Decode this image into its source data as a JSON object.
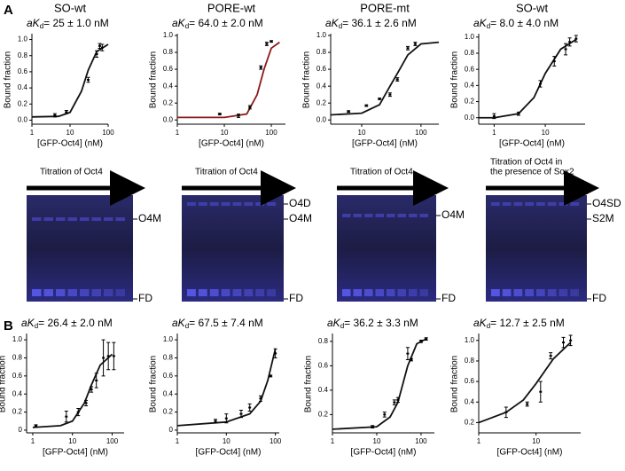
{
  "panel_labels": [
    "A",
    "B"
  ],
  "gels": [
    {
      "title": [
        "Titration of Oct4"
      ],
      "bands": [
        "O4M",
        "FD"
      ]
    },
    {
      "title": [
        "Titration of Oct4"
      ],
      "bands": [
        "O4D",
        "O4M",
        "FD"
      ]
    },
    {
      "title": [
        "Titration of Oct4"
      ],
      "bands": [
        "O4M",
        "FD"
      ]
    },
    {
      "title": [
        "Titration of Oct4 in",
        "the presence of Sox2"
      ],
      "bands": [
        "O4SD",
        "S2M",
        "FD"
      ]
    }
  ],
  "chart_data": [
    {
      "type": "scatter",
      "title": "SO-wt",
      "annotation": {
        "main": "aK",
        "sub": "d",
        "value": "= 25 ± 1.0 nM"
      },
      "xlabel": "[GFP-Oct4] (nM)",
      "ylabel": "Bound fraction",
      "xscale": "log",
      "xlim": [
        1,
        100
      ],
      "xticks": [
        1,
        10,
        100
      ],
      "ylim": [
        -0.05,
        1.05
      ],
      "yticks": [
        {
          "value": 0,
          "label": "0.0"
        },
        0.2,
        0.4,
        0.6,
        0.8,
        {
          "value": 1,
          "label": "1.0"
        }
      ],
      "color": "#111111",
      "points": {
        "x": [
          4,
          8,
          30,
          50,
          60,
          70
        ],
        "values": [
          0.06,
          0.1,
          0.5,
          0.82,
          0.92,
          0.9
        ],
        "errors": [
          0.02,
          0.02,
          0.03,
          0.04,
          0.03,
          0.04
        ]
      },
      "fit": {
        "x": [
          1,
          5,
          10,
          20,
          30,
          50,
          100
        ],
        "values": [
          0.04,
          0.047,
          0.096,
          0.36,
          0.62,
          0.85,
          0.94
        ]
      }
    },
    {
      "type": "scatter",
      "title": "PORE-wt",
      "annotation": {
        "main": "aK",
        "sub": "d",
        "value": "= 64.0 ± 2.0 nM"
      },
      "xlabel": "[GFP-Oct4] (nM)",
      "ylabel": "Bound fraction",
      "xscale": "log",
      "xlim": [
        1,
        200
      ],
      "xticks": [
        1,
        10,
        100
      ],
      "ylim": [
        -0.05,
        1.0
      ],
      "yticks": [
        {
          "value": 0,
          "label": "0.0"
        },
        0.2,
        0.4,
        0.6,
        0.8,
        {
          "value": 1,
          "label": "1.0"
        }
      ],
      "color": "#8b1a1a",
      "points": {
        "x": [
          8,
          20,
          35,
          60,
          80,
          100
        ],
        "values": [
          0.07,
          0.05,
          0.15,
          0.62,
          0.9,
          0.93
        ],
        "errors": [
          0.01,
          0.02,
          0.02,
          0.02,
          0.02,
          0.01
        ]
      },
      "fit": {
        "x": [
          1,
          10,
          30,
          50,
          70,
          100,
          150
        ],
        "values": [
          0.03,
          0.03,
          0.07,
          0.3,
          0.6,
          0.85,
          0.92
        ]
      }
    },
    {
      "type": "scatter",
      "title": "PORE-mt",
      "annotation": {
        "main": "aK",
        "sub": "d",
        "value": "= 36.1 ± 2.6 nM"
      },
      "xlabel": "[GFP-Oct4] (nM)",
      "ylabel": "Bound fraction",
      "xscale": "log",
      "xlim": [
        3,
        200
      ],
      "xticks": [
        10,
        100
      ],
      "ylim": [
        -0.05,
        1.0
      ],
      "yticks": [
        {
          "value": 0,
          "label": "0.0"
        },
        0.2,
        0.4,
        0.6,
        0.8,
        {
          "value": 1,
          "label": "1.0"
        }
      ],
      "color": "#111111",
      "points": {
        "x": [
          6,
          12,
          20,
          30,
          40,
          60,
          80
        ],
        "values": [
          0.1,
          0.17,
          0.25,
          0.3,
          0.48,
          0.85,
          0.9
        ],
        "errors": [
          0.01,
          0.01,
          0.01,
          0.02,
          0.02,
          0.02,
          0.02
        ]
      },
      "fit": {
        "x": [
          3,
          10,
          20,
          30,
          40,
          60,
          100,
          200
        ],
        "values": [
          0.06,
          0.08,
          0.18,
          0.4,
          0.55,
          0.77,
          0.9,
          0.92
        ]
      }
    },
    {
      "type": "scatter",
      "title": "SO-wt",
      "annotation": {
        "main": "aK",
        "sub": "d",
        "value": "= 8.0 ± 4.0 nM"
      },
      "xlabel": "[GFP-Oct4] (nM)",
      "ylabel": "Bound fraction",
      "xscale": "log",
      "xlim": [
        0.5,
        60
      ],
      "xticks": [
        1,
        10
      ],
      "ylim": [
        -0.08,
        1.02
      ],
      "yticks": [
        {
          "value": 0,
          "label": "0.0"
        },
        0.2,
        0.4,
        0.6,
        0.8,
        {
          "value": 1,
          "label": "1.0"
        }
      ],
      "color": "#111111",
      "points": {
        "x": [
          1,
          3,
          8,
          15,
          25,
          30,
          40
        ],
        "values": [
          0.02,
          0.05,
          0.42,
          0.7,
          0.85,
          0.94,
          0.98
        ],
        "errors": [
          0.03,
          0.02,
          0.04,
          0.06,
          0.07,
          0.05,
          0.04
        ]
      },
      "fit": {
        "x": [
          0.5,
          1,
          3,
          6,
          10,
          20,
          40
        ],
        "values": [
          0,
          0,
          0.05,
          0.25,
          0.55,
          0.85,
          0.97
        ]
      }
    },
    {
      "type": "scatter",
      "annotation": {
        "main": "aK",
        "sub": "d",
        "value": "= 26.4 ± 2.0 nM"
      },
      "xlabel": "[GFP-Oct4] (nM)",
      "ylabel": "Bound fraction",
      "xscale": "log",
      "xlim": [
        0.7,
        200
      ],
      "xticks": [
        1,
        10,
        100
      ],
      "ylim": [
        -0.03,
        1.05
      ],
      "yticks": [
        0,
        0.2,
        0.4,
        0.6,
        0.8,
        {
          "value": 1,
          "label": "1.0"
        }
      ],
      "color": "#111111",
      "points": {
        "x": [
          1.2,
          7,
          14,
          22,
          30,
          40,
          60,
          80,
          110
        ],
        "values": [
          0.05,
          0.15,
          0.2,
          0.3,
          0.45,
          0.55,
          0.8,
          0.82,
          0.82
        ],
        "errors": [
          0.01,
          0.06,
          0.04,
          0.03,
          0.03,
          0.08,
          0.2,
          0.15,
          0.15
        ]
      },
      "fit": {
        "x": [
          1,
          5,
          10,
          20,
          30,
          50,
          100
        ],
        "values": [
          0.03,
          0.05,
          0.1,
          0.3,
          0.5,
          0.72,
          0.84
        ]
      }
    },
    {
      "type": "scatter",
      "annotation": {
        "main": "aK",
        "sub": "d",
        "value": "= 67.5 ± 7.4 nM"
      },
      "xlabel": "[GFP-Oct4] (nM)",
      "ylabel": "Bound fraction",
      "xscale": "log",
      "xlim": [
        1,
        120
      ],
      "xticks": [
        1,
        10,
        100
      ],
      "ylim": [
        -0.03,
        1.05
      ],
      "yticks": [
        0,
        0.2,
        0.4,
        0.6,
        0.8,
        {
          "value": 1,
          "label": "1.0"
        }
      ],
      "color": "#111111",
      "points": {
        "x": [
          6,
          10,
          20,
          30,
          50,
          80,
          100
        ],
        "values": [
          0.1,
          0.13,
          0.18,
          0.25,
          0.35,
          0.6,
          0.85
        ],
        "errors": [
          0.02,
          0.05,
          0.04,
          0.04,
          0.03,
          0.01,
          0.05
        ]
      },
      "fit": {
        "x": [
          1,
          10,
          30,
          50,
          70,
          100
        ],
        "values": [
          0.05,
          0.09,
          0.18,
          0.32,
          0.55,
          0.9
        ]
      }
    },
    {
      "type": "scatter",
      "annotation": {
        "main": "aK",
        "sub": "d",
        "value": "= 36.2 ± 3.3 nM"
      },
      "xlabel": "[GFP-Oct4] (nM)",
      "ylabel": "Bound fraction",
      "xscale": "log",
      "xlim": [
        1,
        200
      ],
      "xticks": [
        1,
        10,
        100
      ],
      "ylim": [
        0.05,
        0.85
      ],
      "yticks": [
        0.2,
        0.4,
        0.6,
        0.8
      ],
      "color": "#111111",
      "points": {
        "x": [
          8,
          15,
          25,
          30,
          50,
          60,
          100,
          130
        ],
        "values": [
          0.1,
          0.2,
          0.3,
          0.32,
          0.7,
          0.65,
          0.8,
          0.82
        ],
        "errors": [
          0.01,
          0.02,
          0.02,
          0.02,
          0.05,
          0.01,
          0.01,
          0.01
        ]
      },
      "fit": {
        "x": [
          1,
          10,
          20,
          30,
          50,
          80,
          130
        ],
        "values": [
          0.08,
          0.1,
          0.18,
          0.3,
          0.6,
          0.78,
          0.82
        ]
      }
    },
    {
      "type": "scatter",
      "annotation": {
        "main": "aK",
        "sub": "d",
        "value": "= 12.7 ± 2.5 nM"
      },
      "xlabel": "[GFP-Oct4] (nM)",
      "ylabel": "Bound fraction",
      "xscale": "log",
      "xlim": [
        1,
        60
      ],
      "xticks": [
        1,
        10
      ],
      "ylim": [
        0.1,
        1.05
      ],
      "yticks": [
        0.2,
        0.4,
        0.6,
        0.8,
        {
          "value": 1,
          "label": "1.0"
        }
      ],
      "color": "#111111",
      "points": {
        "x": [
          3,
          7,
          12,
          18,
          30,
          40
        ],
        "values": [
          0.3,
          0.38,
          0.5,
          0.85,
          0.98,
          1.0
        ],
        "errors": [
          0.05,
          0.02,
          0.1,
          0.03,
          0.05,
          0.05
        ]
      },
      "fit": {
        "x": [
          1,
          3,
          6,
          10,
          20,
          40
        ],
        "values": [
          0.2,
          0.3,
          0.42,
          0.58,
          0.82,
          0.98
        ]
      }
    }
  ]
}
